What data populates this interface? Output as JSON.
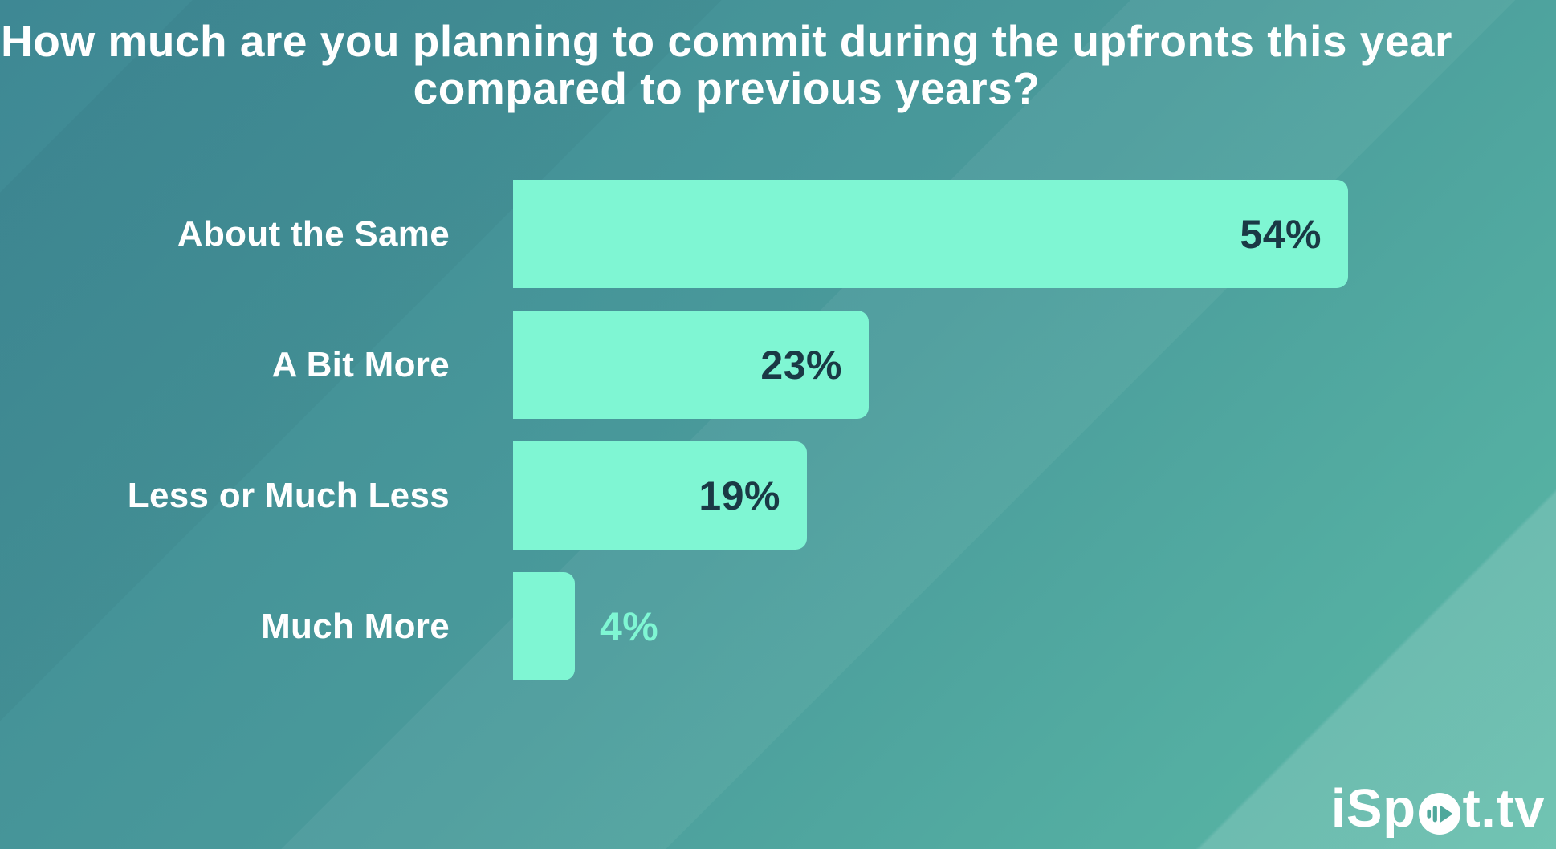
{
  "title": "How much are you planning to commit during the upfronts this year compared to previous years?",
  "chart_data": {
    "type": "bar",
    "orientation": "horizontal",
    "title": "How much are you planning to commit during the upfronts this year compared to previous years?",
    "categories": [
      "About the Same",
      "A Bit More",
      "Less or Much Less",
      "Much More"
    ],
    "values": [
      54,
      23,
      19,
      4
    ],
    "value_labels": [
      "54%",
      "23%",
      "19%",
      "4%"
    ],
    "value_label_position": [
      "inside-right",
      "inside-right",
      "inside-right",
      "outside-right"
    ],
    "xlim": [
      0,
      64
    ],
    "grid": false,
    "legend": false,
    "axes_shown": false
  },
  "colors": {
    "bar": "#7FF6D3",
    "value_dark": "#1A3945",
    "value_light": "#7FF6D3",
    "text": "#FFFFFF",
    "bg_start": "#3E8894",
    "bg_mid": "#4A9B9B",
    "bg_end": "#5ABAA6"
  },
  "logo": {
    "name": "iSpot.tv",
    "text_pre": "iSp",
    "text_post": "t.tv"
  }
}
